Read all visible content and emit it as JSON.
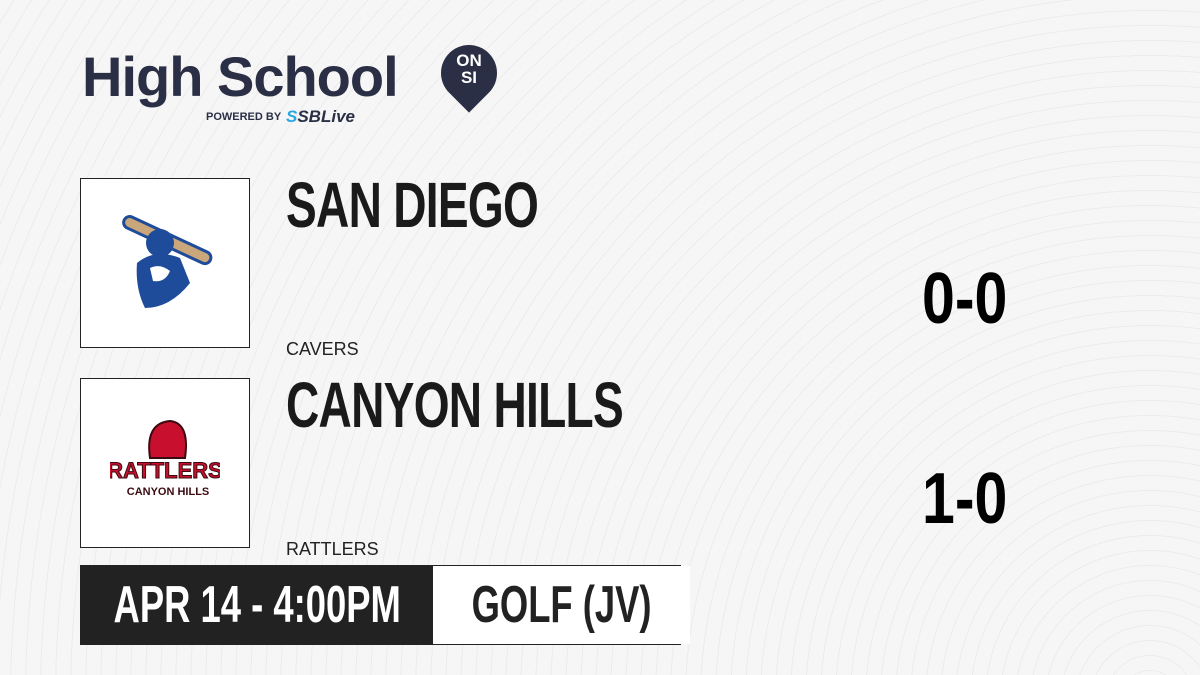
{
  "brand": {
    "title": "High School",
    "badge_top": "ON",
    "badge_bottom": "SI",
    "powered_by": "POWERED BY",
    "partner_prefix": "S",
    "partner": "SBLive",
    "accent": "#29a8e0",
    "brand_color": "#2b2f45"
  },
  "teams": [
    {
      "name": "SAN DIEGO",
      "mascot": "CAVERS",
      "record": "0-0",
      "logo": "caveman-bat-icon",
      "color": "#1f4b9b"
    },
    {
      "name": "CANYON HILLS",
      "mascot": "RATTLERS",
      "record": "1-0",
      "logo": "rattlesnake-icon",
      "logo_text": "RATTLERS",
      "logo_subtext": "CANYON HILLS",
      "color": "#c8102e"
    }
  ],
  "event": {
    "datetime": "APR 14 - 4:00PM",
    "sport": "GOLF (JV)"
  }
}
